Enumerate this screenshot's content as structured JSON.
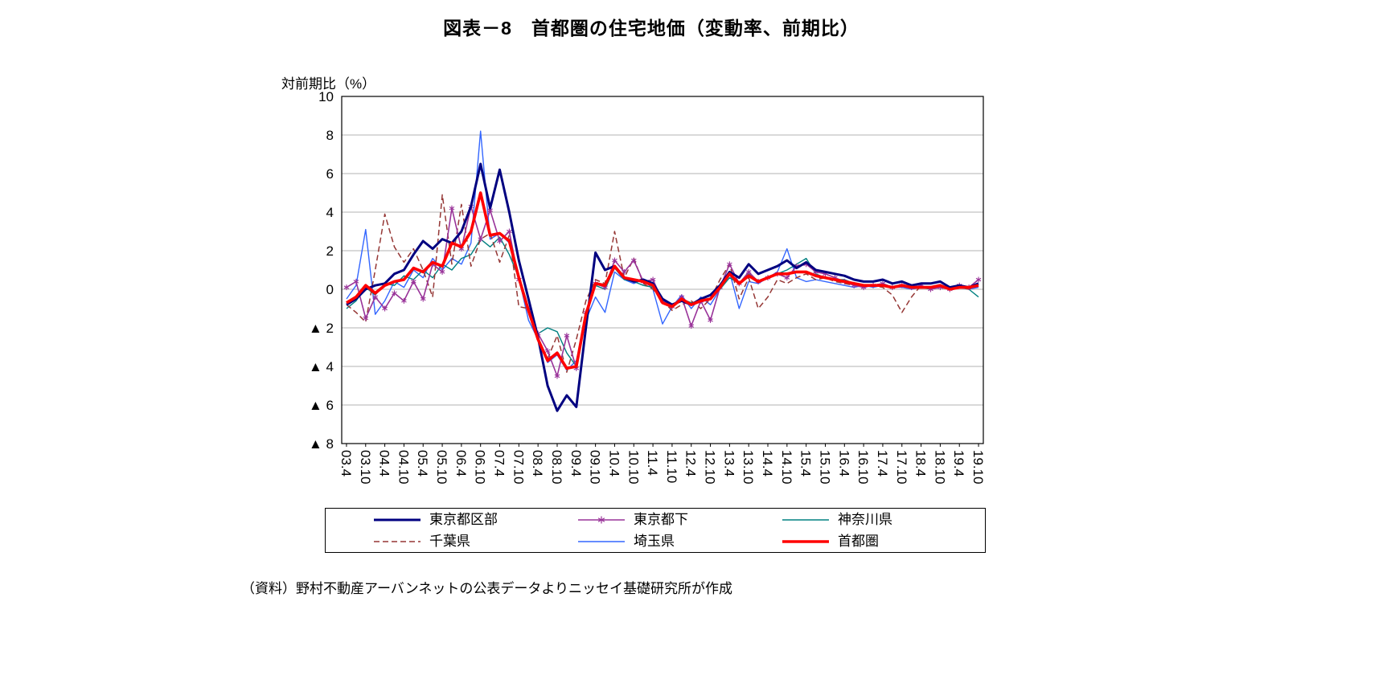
{
  "page": {
    "footer": "（資料）野村不動産アーバンネットの公表データよりニッセイ基礎研究所が作成"
  },
  "chart_data": {
    "type": "line",
    "title": "図表－8　首都圏の住宅地価（変動率、前期比）",
    "ylabel": "対前期比（%）",
    "ylim": [
      -8,
      10
    ],
    "ytick_values": [
      10,
      8,
      6,
      4,
      2,
      0,
      -2,
      -4,
      -6,
      -8
    ],
    "ytick_labels": [
      "10",
      "8",
      "6",
      "4",
      "2",
      "0",
      "▲ 2",
      "▲ 4",
      "▲ 6",
      "▲ 8"
    ],
    "x_tick_labels": [
      "03.4",
      "03.10",
      "04.4",
      "04.10",
      "05.4",
      "05.10",
      "06.4",
      "06.10",
      "07.4",
      "07.10",
      "08.4",
      "08.10",
      "09.4",
      "09.10",
      "10.4",
      "10.10",
      "11.4",
      "11.10",
      "12.4",
      "12.10",
      "13.4",
      "13.10",
      "14.4",
      "14.10",
      "15.4",
      "15.10",
      "16.4",
      "16.10",
      "17.4",
      "17.10",
      "18.4",
      "18.10",
      "19.4",
      "19.10"
    ],
    "x_note": "quarterly series; tick labels shown every second point (April and October)",
    "grid": "horizontal",
    "legend_position": "bottom",
    "series": [
      {
        "name": "東京都区部",
        "color": "#000080",
        "width": 3,
        "dash": null,
        "marker": null,
        "values": [
          -0.8,
          -0.5,
          0,
          0.2,
          0.3,
          0.8,
          1,
          1.8,
          2.5,
          2.1,
          2.6,
          2.4,
          3,
          4.3,
          6.5,
          4.2,
          6.2,
          4,
          1.5,
          -0.5,
          -2.5,
          -5,
          -6.3,
          -5.5,
          -6.1,
          -2,
          1.9,
          1,
          1.2,
          0.6,
          0.4,
          0.5,
          0.3,
          -0.5,
          -0.8,
          -0.6,
          -0.8,
          -0.5,
          -0.3,
          0.2,
          0.9,
          0.6,
          1.3,
          0.8,
          1,
          1.2,
          1.5,
          1.1,
          1.4,
          1,
          0.9,
          0.8,
          0.7,
          0.5,
          0.4,
          0.4,
          0.5,
          0.3,
          0.4,
          0.2,
          0.3,
          0.3,
          0.4,
          0.1,
          0.2,
          0.1,
          0.3
        ]
      },
      {
        "name": "東京都下",
        "color": "#993399",
        "width": 1.6,
        "dash": null,
        "marker": "asterisk",
        "values": [
          0.1,
          0.4,
          -1.5,
          -0.4,
          -1,
          -0.2,
          -0.6,
          0.4,
          -0.5,
          1.3,
          0.9,
          4.2,
          2.1,
          4.3,
          2.6,
          4.1,
          2.5,
          3,
          0.5,
          -1,
          -2.3,
          -3.2,
          -4.5,
          -2.4,
          -4.1,
          -1.2,
          0.3,
          0.1,
          1.5,
          0.9,
          1.5,
          0.4,
          0.5,
          -0.6,
          -0.9,
          -0.4,
          -1.9,
          -0.6,
          -1.6,
          0.1,
          1.3,
          0.3,
          0.9,
          0.4,
          0.6,
          0.8,
          0.6,
          1.2,
          1.3,
          0.9,
          0.8,
          0.6,
          0.4,
          0.2,
          0.1,
          0.2,
          0.3,
          0.1,
          0.2,
          0.1,
          0.2,
          0,
          0.1,
          0,
          0.2,
          0.1,
          0.5
        ]
      },
      {
        "name": "神奈川県",
        "color": "#008080",
        "width": 1.4,
        "dash": null,
        "marker": null,
        "values": [
          -1,
          -0.6,
          0.1,
          -0.3,
          0.3,
          0.2,
          0.7,
          0.5,
          1,
          0.6,
          1.3,
          1,
          1.6,
          1.8,
          2.6,
          2.2,
          2.7,
          1.8,
          0.6,
          -1.2,
          -2.3,
          -2,
          -2.2,
          -3.3,
          -4,
          -1.2,
          0.2,
          0,
          1.1,
          0.5,
          0.4,
          0.2,
          0.1,
          -0.6,
          -0.9,
          -0.5,
          -0.7,
          -0.6,
          -0.5,
          0,
          0.6,
          0.3,
          0.8,
          0.4,
          0.6,
          0.8,
          1,
          1.3,
          1.6,
          0.8,
          0.6,
          0.5,
          0.5,
          0.3,
          0.2,
          0.2,
          0.3,
          0.1,
          0.2,
          0.1,
          0.1,
          0,
          0.2,
          0,
          0.1,
          0,
          -0.4
        ]
      },
      {
        "name": "千葉県",
        "color": "#953735",
        "width": 1.5,
        "dash": "7 4",
        "marker": null,
        "values": [
          -0.8,
          -1.2,
          -1.7,
          1,
          3.9,
          2.2,
          1.4,
          2.1,
          1,
          -0.4,
          4.9,
          1.3,
          4.4,
          1.2,
          2.6,
          2.9,
          1.4,
          2.8,
          -0.9,
          -1,
          -2.6,
          -3.6,
          -2.4,
          -4.3,
          -2.6,
          -0.6,
          0.5,
          0.3,
          3,
          0.6,
          1.6,
          0.3,
          0,
          -0.6,
          -1.1,
          -0.8,
          -0.6,
          -1,
          -0.5,
          0.5,
          1.3,
          -0.5,
          0.6,
          -1,
          -0.4,
          0.5,
          0.3,
          0.6,
          0.8,
          0.5,
          0.6,
          0.4,
          0.3,
          0.2,
          0.1,
          0.2,
          0.1,
          -0.3,
          -1.2,
          -0.4,
          0.2,
          0,
          0.1,
          0,
          0.1,
          0,
          0.2
        ]
      },
      {
        "name": "埼玉県",
        "color": "#3366FF",
        "width": 1.4,
        "dash": null,
        "marker": null,
        "values": [
          -0.5,
          0.2,
          3.1,
          -1.3,
          -0.6,
          0.4,
          0.1,
          1,
          0.6,
          1.6,
          1,
          1.6,
          1.3,
          2.4,
          8.2,
          2.6,
          2.9,
          2.4,
          0.6,
          -1.6,
          -2.6,
          -3.8,
          -3.4,
          -4.2,
          -3.7,
          -1.6,
          -0.4,
          -1.2,
          0.9,
          0.5,
          0.3,
          0.5,
          0,
          -1.8,
          -0.9,
          -0.3,
          -1,
          -0.4,
          -0.8,
          0,
          0.9,
          -1,
          0.4,
          0.3,
          0.6,
          0.9,
          2.1,
          0.6,
          0.4,
          0.5,
          0.4,
          0.3,
          0.2,
          0.1,
          0.2,
          0.1,
          0.2,
          0.1,
          0.1,
          0,
          0.1,
          0.1,
          0.2,
          0,
          0.1,
          0,
          0.1
        ]
      },
      {
        "name": "首都圏",
        "color": "#FF0000",
        "width": 3.6,
        "dash": null,
        "marker": null,
        "values": [
          -0.7,
          -0.4,
          0.2,
          -0.2,
          0.2,
          0.4,
          0.5,
          1.1,
          0.9,
          1.4,
          1.2,
          2.4,
          2.2,
          3,
          5,
          2.8,
          2.9,
          2.5,
          0.6,
          -1.1,
          -2.6,
          -3.7,
          -3.3,
          -4.1,
          -4,
          -1.3,
          0.3,
          0.2,
          1.2,
          0.6,
          0.5,
          0.4,
          0.2,
          -0.7,
          -0.9,
          -0.5,
          -0.8,
          -0.6,
          -0.5,
          0.1,
          0.8,
          0.3,
          0.7,
          0.4,
          0.6,
          0.8,
          0.8,
          0.9,
          0.9,
          0.7,
          0.6,
          0.5,
          0.4,
          0.3,
          0.2,
          0.2,
          0.2,
          0.1,
          0.2,
          0.1,
          0.1,
          0.1,
          0.2,
          0,
          0.1,
          0.1,
          0.2
        ]
      }
    ]
  }
}
